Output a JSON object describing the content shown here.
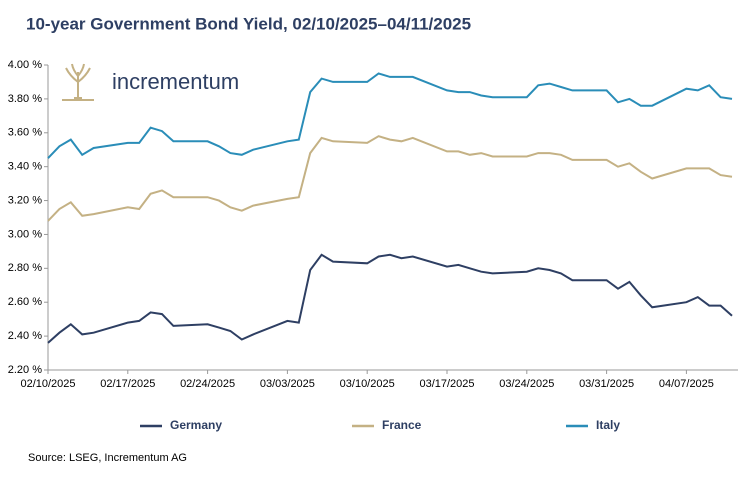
{
  "chart_data": {
    "type": "line",
    "title": "10-year Government Bond Yield, 02/10/2025–04/11/2025",
    "logo": "incrementum",
    "source": "Source: LSEG, Incrementum AG",
    "x": [
      "02/10/2025",
      "02/11/2025",
      "02/12/2025",
      "02/13/2025",
      "02/14/2025",
      "02/17/2025",
      "02/18/2025",
      "02/19/2025",
      "02/20/2025",
      "02/21/2025",
      "02/24/2025",
      "02/25/2025",
      "02/26/2025",
      "02/27/2025",
      "02/28/2025",
      "03/03/2025",
      "03/04/2025",
      "03/05/2025",
      "03/06/2025",
      "03/07/2025",
      "03/10/2025",
      "03/11/2025",
      "03/12/2025",
      "03/13/2025",
      "03/14/2025",
      "03/17/2025",
      "03/18/2025",
      "03/19/2025",
      "03/20/2025",
      "03/21/2025",
      "03/24/2025",
      "03/25/2025",
      "03/26/2025",
      "03/27/2025",
      "03/28/2025",
      "03/31/2025",
      "04/01/2025",
      "04/02/2025",
      "04/03/2025",
      "04/04/2025",
      "04/07/2025",
      "04/08/2025",
      "04/09/2025",
      "04/10/2025",
      "04/11/2025"
    ],
    "series": [
      {
        "name": "Germany",
        "color": "#2e3f63",
        "values": [
          2.36,
          2.42,
          2.47,
          2.41,
          2.42,
          2.48,
          2.49,
          2.54,
          2.53,
          2.46,
          2.47,
          2.45,
          2.43,
          2.38,
          2.41,
          2.49,
          2.48,
          2.79,
          2.88,
          2.84,
          2.83,
          2.87,
          2.88,
          2.86,
          2.87,
          2.81,
          2.82,
          2.8,
          2.78,
          2.77,
          2.78,
          2.8,
          2.79,
          2.77,
          2.73,
          2.73,
          2.68,
          2.72,
          2.64,
          2.57,
          2.6,
          2.63,
          2.58,
          2.58,
          2.52
        ]
      },
      {
        "name": "France",
        "color": "#c4b184",
        "values": [
          3.08,
          3.15,
          3.19,
          3.11,
          3.12,
          3.16,
          3.15,
          3.24,
          3.26,
          3.22,
          3.22,
          3.2,
          3.16,
          3.14,
          3.17,
          3.21,
          3.22,
          3.48,
          3.57,
          3.55,
          3.54,
          3.58,
          3.56,
          3.55,
          3.57,
          3.49,
          3.49,
          3.47,
          3.48,
          3.46,
          3.46,
          3.48,
          3.48,
          3.47,
          3.44,
          3.44,
          3.4,
          3.42,
          3.37,
          3.33,
          3.39,
          3.39,
          3.39,
          3.35,
          3.34
        ]
      },
      {
        "name": "Italy",
        "color": "#2a8db8",
        "values": [
          3.45,
          3.52,
          3.56,
          3.47,
          3.51,
          3.54,
          3.54,
          3.63,
          3.61,
          3.55,
          3.55,
          3.52,
          3.48,
          3.47,
          3.5,
          3.55,
          3.56,
          3.84,
          3.92,
          3.9,
          3.9,
          3.95,
          3.93,
          3.93,
          3.93,
          3.85,
          3.84,
          3.84,
          3.82,
          3.81,
          3.81,
          3.88,
          3.89,
          3.87,
          3.85,
          3.85,
          3.78,
          3.8,
          3.76,
          3.76,
          3.86,
          3.85,
          3.88,
          3.81,
          3.8
        ]
      }
    ],
    "xlim": [
      "02/10/2025",
      "04/11/2025"
    ],
    "xticks": [
      "02/10/2025",
      "02/17/2025",
      "02/24/2025",
      "03/03/2025",
      "03/10/2025",
      "03/17/2025",
      "03/24/2025",
      "03/31/2025",
      "04/07/2025"
    ],
    "ylim": [
      2.2,
      4.0
    ],
    "yticks": [
      {
        "value": 2.2,
        "label": "2.20 %"
      },
      {
        "value": 2.4,
        "label": "2.40 %"
      },
      {
        "value": 2.6,
        "label": "2.60 %"
      },
      {
        "value": 2.8,
        "label": "2.80 %"
      },
      {
        "value": 3.0,
        "label": "3.00 %"
      },
      {
        "value": 3.2,
        "label": "3.20 %"
      },
      {
        "value": 3.4,
        "label": "3.40 %"
      },
      {
        "value": 3.6,
        "label": "3.60 %"
      },
      {
        "value": 3.8,
        "label": "3.80 %"
      },
      {
        "value": 4.0,
        "label": "4.00 %"
      }
    ],
    "grid": false,
    "legend": "bottom"
  }
}
